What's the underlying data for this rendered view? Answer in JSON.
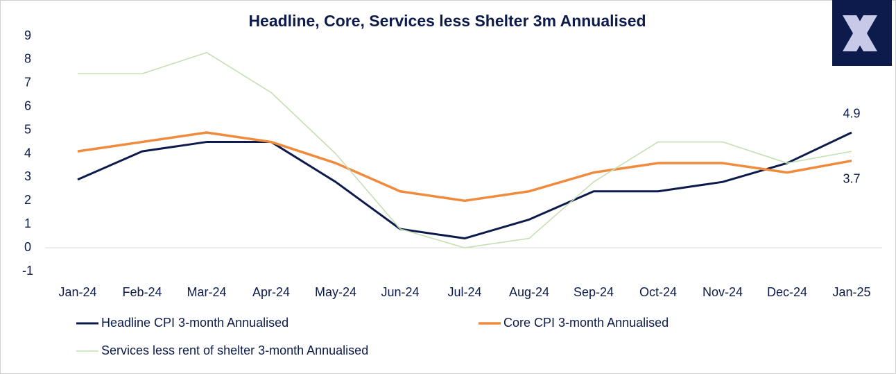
{
  "chart_data": {
    "type": "line",
    "title": "Headline, Core, Services less Shelter 3m Annualised",
    "categories": [
      "Jan-24",
      "Feb-24",
      "Mar-24",
      "Apr-24",
      "May-24",
      "Jun-24",
      "Jul-24",
      "Aug-24",
      "Sep-24",
      "Oct-24",
      "Nov-24",
      "Dec-24",
      "Jan-25"
    ],
    "series": [
      {
        "name": "Headline CPI 3-month Annualised",
        "color": "#0d1b4c",
        "values": [
          2.9,
          4.1,
          4.5,
          4.5,
          2.8,
          0.8,
          0.4,
          1.2,
          2.4,
          2.4,
          2.8,
          3.6,
          4.9
        ]
      },
      {
        "name": "Core CPI 3-month Annualised",
        "color": "#f08a3c",
        "values": [
          4.1,
          4.5,
          4.9,
          4.5,
          3.6,
          2.4,
          2.0,
          2.4,
          3.2,
          3.6,
          3.6,
          3.2,
          3.7
        ]
      },
      {
        "name": "Services less rent of shelter 3-month Annualised",
        "color": "#c4e0b2",
        "values": [
          7.4,
          7.4,
          8.3,
          6.6,
          4.0,
          0.8,
          0.0,
          0.4,
          2.8,
          4.5,
          4.5,
          3.6,
          4.1
        ]
      }
    ],
    "ylim": [
      -1,
      9
    ],
    "yticks": [
      -1,
      0,
      1,
      2,
      3,
      4,
      5,
      6,
      7,
      8,
      9
    ],
    "grid": false,
    "legend": "bottom"
  }
}
